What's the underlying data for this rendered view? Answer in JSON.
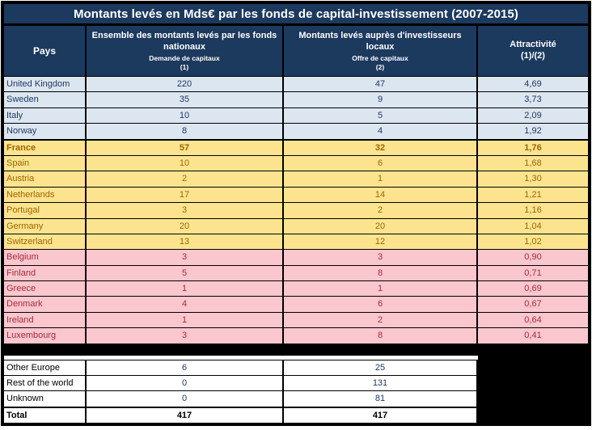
{
  "title": "Montants levés en Mds€ par les fonds de capital-investissement (2007-2015)",
  "header": {
    "pays": "Pays",
    "col1": {
      "main": "Ensemble des montants levés par les fonds nationaux",
      "sub": "Demande de capitaux",
      "num": "(1)"
    },
    "col2": {
      "main": "Montants levés auprès d'investisseurs locaux",
      "sub": "Offre de capitaux",
      "num": "(2)"
    },
    "col3": {
      "main": "Attractivité",
      "num": "(1)/(2)"
    }
  },
  "colors": {
    "header_bg": "#1C395E",
    "header_text": "#FFFFFF",
    "group_blue_bg": "#DCE6F1",
    "group_blue_text": "#1F3864",
    "group_yellow_bg": "#FCE48F",
    "group_yellow_text": "#9C6500",
    "group_pink_bg": "#FBC7CE",
    "group_pink_text": "#A42B3C",
    "bottom_number_text": "#1F3864",
    "border": "#000000"
  },
  "groups": [
    {
      "name": "tier-high",
      "bg": "#DCE6F1",
      "fg": "#1F3864",
      "rows": [
        {
          "country": "United Kingdom",
          "v1": "220",
          "v2": "47",
          "ratio": "4,69",
          "bold": false
        },
        {
          "country": "Sweden",
          "v1": "35",
          "v2": "9",
          "ratio": "3,73",
          "bold": false
        },
        {
          "country": "Italy",
          "v1": "10",
          "v2": "5",
          "ratio": "2,09",
          "bold": false
        },
        {
          "country": "Norway",
          "v1": "8",
          "v2": "4",
          "ratio": "1,92",
          "bold": false
        }
      ]
    },
    {
      "name": "tier-mid",
      "bg": "#FCE48F",
      "fg": "#9C6500",
      "thick_top": true,
      "rows": [
        {
          "country": "France",
          "v1": "57",
          "v2": "32",
          "ratio": "1,76",
          "bold": true
        },
        {
          "country": "Spain",
          "v1": "10",
          "v2": "6",
          "ratio": "1,68",
          "bold": false
        },
        {
          "country": "Austria",
          "v1": "2",
          "v2": "1",
          "ratio": "1,30",
          "bold": false
        },
        {
          "country": "Netherlands",
          "v1": "17",
          "v2": "14",
          "ratio": "1,21",
          "bold": false
        },
        {
          "country": "Portugal",
          "v1": "3",
          "v2": "2",
          "ratio": "1,16",
          "bold": false
        },
        {
          "country": "Germany",
          "v1": "20",
          "v2": "20",
          "ratio": "1,04",
          "bold": false
        },
        {
          "country": "Switzerland",
          "v1": "13",
          "v2": "12",
          "ratio": "1,02",
          "bold": false
        }
      ]
    },
    {
      "name": "tier-low",
      "bg": "#FBC7CE",
      "fg": "#A42B3C",
      "rows": [
        {
          "country": "Belgium",
          "v1": "3",
          "v2": "3",
          "ratio": "0,90",
          "bold": false
        },
        {
          "country": "Finland",
          "v1": "5",
          "v2": "8",
          "ratio": "0,71",
          "bold": false
        },
        {
          "country": "Greece",
          "v1": "1",
          "v2": "1",
          "ratio": "0,69",
          "bold": false
        },
        {
          "country": "Denmark",
          "v1": "4",
          "v2": "6",
          "ratio": "0,67",
          "bold": false
        },
        {
          "country": "Ireland",
          "v1": "1",
          "v2": "2",
          "ratio": "0,64",
          "bold": false
        },
        {
          "country": "Luxembourg",
          "v1": "3",
          "v2": "8",
          "ratio": "0,41",
          "bold": false
        }
      ]
    }
  ],
  "bottom": {
    "rows": [
      {
        "label": "Other Europe",
        "v1": "6",
        "v2": "25",
        "total": false
      },
      {
        "label": "Rest of the world",
        "v1": "0",
        "v2": "131",
        "total": false
      },
      {
        "label": "Unknown",
        "v1": "0",
        "v2": "81",
        "total": false
      },
      {
        "label": "Total",
        "v1": "417",
        "v2": "417",
        "total": true
      }
    ]
  },
  "chart_data": {
    "type": "table",
    "title": "Montants levés en Mds€ par les fonds de capital-investissement (2007-2015)",
    "columns": [
      "Pays",
      "Ensemble des montants levés par les fonds nationaux — Demande de capitaux (1)",
      "Montants levés auprès d'investisseurs locaux — Offre de capitaux (2)",
      "Attractivité (1)/(2)"
    ],
    "rows": [
      [
        "United Kingdom",
        220,
        47,
        "4,69"
      ],
      [
        "Sweden",
        35,
        9,
        "3,73"
      ],
      [
        "Italy",
        10,
        5,
        "2,09"
      ],
      [
        "Norway",
        8,
        4,
        "1,92"
      ],
      [
        "France",
        57,
        32,
        "1,76"
      ],
      [
        "Spain",
        10,
        6,
        "1,68"
      ],
      [
        "Austria",
        2,
        1,
        "1,30"
      ],
      [
        "Netherlands",
        17,
        14,
        "1,21"
      ],
      [
        "Portugal",
        3,
        2,
        "1,16"
      ],
      [
        "Germany",
        20,
        20,
        "1,04"
      ],
      [
        "Switzerland",
        13,
        12,
        "1,02"
      ],
      [
        "Belgium",
        3,
        3,
        "0,90"
      ],
      [
        "Finland",
        5,
        8,
        "0,71"
      ],
      [
        "Greece",
        1,
        1,
        "0,69"
      ],
      [
        "Denmark",
        4,
        6,
        "0,67"
      ],
      [
        "Ireland",
        1,
        2,
        "0,64"
      ],
      [
        "Luxembourg",
        3,
        8,
        "0,41"
      ],
      [
        "Other Europe",
        6,
        25,
        null
      ],
      [
        "Rest of the world",
        0,
        131,
        null
      ],
      [
        "Unknown",
        0,
        81,
        null
      ],
      [
        "Total",
        417,
        417,
        null
      ]
    ]
  }
}
